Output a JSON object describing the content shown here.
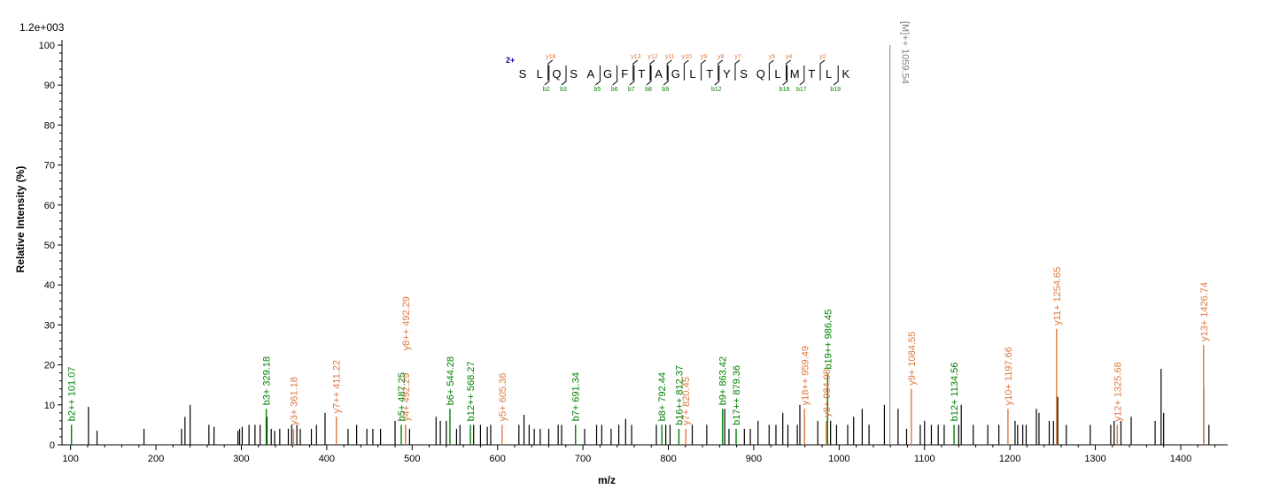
{
  "chart_data": {
    "type": "bar",
    "xlabel": "m/z",
    "ylabel": "Relative   Intensity (%)",
    "scale_label": "1.2e+003",
    "xlim": [
      90,
      1455
    ],
    "ylim": [
      0,
      100
    ],
    "x_ticks": [
      100,
      200,
      300,
      400,
      500,
      600,
      700,
      800,
      900,
      1000,
      1100,
      1200,
      1300,
      1400
    ],
    "y_ticks": [
      0,
      10,
      20,
      30,
      40,
      50,
      60,
      70,
      80,
      90,
      100
    ],
    "colors": {
      "b_ion": "#008000",
      "y_ion": "#e07840",
      "precursor": "#808080",
      "unassigned": "#000000",
      "charge": "#00008b"
    },
    "annotated_peaks": [
      {
        "x": 101.07,
        "y": 5,
        "ion": "b",
        "label": "b2++ 101.07"
      },
      {
        "x": 329.18,
        "y": 9,
        "ion": "b",
        "label": "b3+ 329.18"
      },
      {
        "x": 361.18,
        "y": 4,
        "ion": "y",
        "label": "y3+ 361.18"
      },
      {
        "x": 411.22,
        "y": 7,
        "ion": "y",
        "label": "y7++ 411.22"
      },
      {
        "x": 487.25,
        "y": 5,
        "ion": "b",
        "label": "b5+ 487.25"
      },
      {
        "x": 492.29,
        "y": 5,
        "ion": "y",
        "label": "y4+ 492.29"
      },
      {
        "x": 492.29,
        "y": 5,
        "ion": "y",
        "label": "y8++ 492.29"
      },
      {
        "x": 544.28,
        "y": 9,
        "ion": "b",
        "label": "b6+ 544.28"
      },
      {
        "x": 568.27,
        "y": 5,
        "ion": "b",
        "label": "b12++ 568.27"
      },
      {
        "x": 605.36,
        "y": 5,
        "ion": "y",
        "label": "y5+ 605.36"
      },
      {
        "x": 691.34,
        "y": 5,
        "ion": "b",
        "label": "b7+ 691.34"
      },
      {
        "x": 792.44,
        "y": 5,
        "ion": "b",
        "label": "b8+ 792.44"
      },
      {
        "x": 812.37,
        "y": 4,
        "ion": "b",
        "label": "b16++ 812.37"
      },
      {
        "x": 820.45,
        "y": 4,
        "ion": "y",
        "label": "y7+ 820.45"
      },
      {
        "x": 863.42,
        "y": 9,
        "ion": "b",
        "label": "b9+ 863.42"
      },
      {
        "x": 879.36,
        "y": 4,
        "ion": "b",
        "label": "b17++ 879.36"
      },
      {
        "x": 959.49,
        "y": 9,
        "ion": "y",
        "label": "y18++ 959.49"
      },
      {
        "x": 986.45,
        "y": 18,
        "ion": "b",
        "label": "b19++ 986.45"
      },
      {
        "x": 984.98,
        "y": 6,
        "ion": "y",
        "label": "y8+ 984.98"
      },
      {
        "x": 1084.55,
        "y": 14,
        "ion": "y",
        "label": "y9+ 1084.55"
      },
      {
        "x": 1134.56,
        "y": 5,
        "ion": "b",
        "label": "b12+ 1134.56"
      },
      {
        "x": 1197.66,
        "y": 9,
        "ion": "y",
        "label": "y10+ 1197.66"
      },
      {
        "x": 1254.65,
        "y": 29,
        "ion": "y",
        "label": "y11+ 1254.65"
      },
      {
        "x": 1325.68,
        "y": 5,
        "ion": "y",
        "label": "y12+ 1325.68"
      },
      {
        "x": 1426.74,
        "y": 25,
        "ion": "y",
        "label": "y13+ 1426.74"
      },
      {
        "x": 1059.54,
        "y": 100,
        "ion": "precursor",
        "label": "[M]++ 1059.54"
      }
    ],
    "unannotated_peaks": [
      [
        121,
        9.5
      ],
      [
        131,
        3.5
      ],
      [
        186,
        4
      ],
      [
        230,
        4
      ],
      [
        234,
        7
      ],
      [
        240,
        10
      ],
      [
        262,
        5
      ],
      [
        268,
        4.5
      ],
      [
        296,
        3.5
      ],
      [
        298,
        4
      ],
      [
        301,
        4.5
      ],
      [
        309,
        5
      ],
      [
        316,
        5
      ],
      [
        322,
        5
      ],
      [
        330,
        7
      ],
      [
        335,
        4
      ],
      [
        339,
        3.5
      ],
      [
        345,
        4
      ],
      [
        355,
        4
      ],
      [
        359,
        5
      ],
      [
        365,
        5
      ],
      [
        369,
        4
      ],
      [
        382,
        4
      ],
      [
        388,
        5
      ],
      [
        398,
        8
      ],
      [
        425,
        4
      ],
      [
        435,
        5
      ],
      [
        447,
        4
      ],
      [
        454,
        4
      ],
      [
        463,
        4
      ],
      [
        480,
        6
      ],
      [
        497,
        4
      ],
      [
        528,
        7
      ],
      [
        533,
        6
      ],
      [
        540,
        6
      ],
      [
        552,
        4
      ],
      [
        556,
        5
      ],
      [
        572,
        5
      ],
      [
        580,
        5
      ],
      [
        588,
        4.5
      ],
      [
        592,
        5
      ],
      [
        625,
        5
      ],
      [
        631,
        7.5
      ],
      [
        637,
        5
      ],
      [
        643,
        4
      ],
      [
        650,
        4
      ],
      [
        660,
        4
      ],
      [
        671,
        5
      ],
      [
        675,
        5
      ],
      [
        702,
        4
      ],
      [
        716,
        5
      ],
      [
        722,
        5
      ],
      [
        733,
        4
      ],
      [
        742,
        5
      ],
      [
        750,
        6.5
      ],
      [
        757,
        5
      ],
      [
        786,
        5
      ],
      [
        797,
        5
      ],
      [
        802,
        5
      ],
      [
        828,
        5
      ],
      [
        845,
        5
      ],
      [
        866,
        9
      ],
      [
        871,
        4
      ],
      [
        889,
        4
      ],
      [
        896,
        4
      ],
      [
        905,
        6
      ],
      [
        918,
        5
      ],
      [
        926,
        5
      ],
      [
        934,
        8
      ],
      [
        940,
        5
      ],
      [
        951,
        5
      ],
      [
        954,
        10
      ],
      [
        975,
        6
      ],
      [
        990,
        6
      ],
      [
        997,
        5
      ],
      [
        1010,
        5
      ],
      [
        1017,
        7
      ],
      [
        1027,
        9
      ],
      [
        1035,
        5
      ],
      [
        1053,
        10
      ],
      [
        1069,
        9
      ],
      [
        1079,
        4
      ],
      [
        1095,
        5
      ],
      [
        1100,
        6
      ],
      [
        1108,
        5
      ],
      [
        1116,
        5
      ],
      [
        1123,
        5
      ],
      [
        1140,
        5
      ],
      [
        1143,
        10
      ],
      [
        1157,
        5
      ],
      [
        1174,
        5
      ],
      [
        1187,
        5
      ],
      [
        1206,
        6
      ],
      [
        1209,
        5
      ],
      [
        1215,
        5
      ],
      [
        1219,
        5
      ],
      [
        1231,
        9
      ],
      [
        1234,
        8
      ],
      [
        1246,
        6
      ],
      [
        1251,
        6
      ],
      [
        1256,
        12
      ],
      [
        1266,
        5
      ],
      [
        1294,
        5
      ],
      [
        1318,
        5
      ],
      [
        1322,
        6
      ],
      [
        1330,
        6
      ],
      [
        1342,
        7
      ],
      [
        1370,
        6
      ],
      [
        1377,
        19
      ],
      [
        1380,
        8
      ],
      [
        1427,
        14.5
      ],
      [
        1433,
        5
      ]
    ]
  },
  "sequence": {
    "charge": "2+",
    "residues": [
      "S",
      "L",
      "Q",
      "S",
      "A",
      "G",
      "F",
      "T",
      "A",
      "G",
      "L",
      "T",
      "Y",
      "S",
      "Q",
      "L",
      "M",
      "T",
      "L",
      "K"
    ],
    "y_ions": [
      {
        "after": 2,
        "label": "y18"
      },
      {
        "after": 7,
        "label": "y13"
      },
      {
        "after": 8,
        "label": "y12"
      },
      {
        "after": 9,
        "label": "y11"
      },
      {
        "after": 10,
        "label": "y10"
      },
      {
        "after": 11,
        "label": "y9"
      },
      {
        "after": 12,
        "label": "y8"
      },
      {
        "after": 13,
        "label": "y7"
      },
      {
        "after": 15,
        "label": "y5"
      },
      {
        "after": 16,
        "label": "y4"
      },
      {
        "after": 18,
        "label": "y2"
      }
    ],
    "b_ions": [
      {
        "after": 2,
        "label": "b2"
      },
      {
        "after": 3,
        "label": "b3"
      },
      {
        "after": 5,
        "label": "b5"
      },
      {
        "after": 6,
        "label": "b6"
      },
      {
        "after": 7,
        "label": "b7"
      },
      {
        "after": 8,
        "label": "b8"
      },
      {
        "after": 9,
        "label": "b9"
      },
      {
        "after": 12,
        "label": "b12"
      },
      {
        "after": 16,
        "label": "b16"
      },
      {
        "after": 17,
        "label": "b17"
      },
      {
        "after": 19,
        "label": "b19"
      }
    ]
  }
}
